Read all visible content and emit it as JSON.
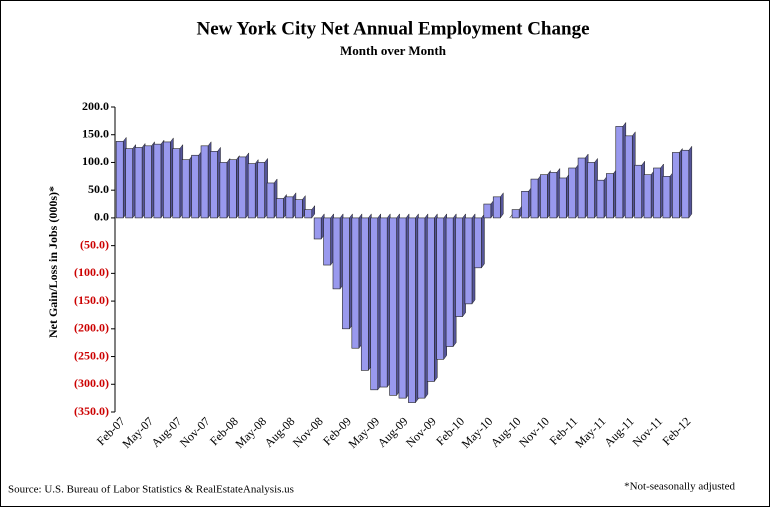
{
  "chart_data": {
    "type": "bar",
    "title": "New York City Net Annual Employment Change",
    "subtitle": "Month over Month",
    "y_label": "Net Gain/Loss in Jobs (000s)*",
    "source": "Source: U.S. Bureau of Labor Statistics & RealEstateAnalysis.us",
    "note": "*Not-seasonally adjusted",
    "color": "#9999ee",
    "negative_label_color": "#cc0000",
    "categories": [
      "Feb-07",
      null,
      null,
      "May-07",
      null,
      null,
      "Aug-07",
      null,
      null,
      "Nov-07",
      null,
      null,
      "Feb-08",
      null,
      null,
      "May-08",
      null,
      null,
      "Aug-08",
      null,
      null,
      "Nov-08",
      null,
      null,
      "Feb-09",
      null,
      null,
      "May-09",
      null,
      null,
      "Aug-09",
      null,
      null,
      "Nov-09",
      null,
      null,
      "Feb-10",
      null,
      null,
      "May-10",
      null,
      null,
      "Aug-10",
      null,
      null,
      "Nov-10",
      null,
      null,
      "Feb-11",
      null,
      null,
      "May-11",
      null,
      null,
      "Aug-11",
      null,
      null,
      "Nov-11",
      null,
      null,
      "Feb-12"
    ],
    "values": [
      138,
      125,
      127,
      130,
      133,
      137,
      125,
      105,
      113,
      130,
      120,
      100,
      105,
      110,
      98,
      100,
      63,
      35,
      38,
      33,
      15,
      -38,
      -85,
      -128,
      -200,
      -235,
      -275,
      -310,
      -305,
      -320,
      -325,
      -333,
      -325,
      -295,
      -255,
      -232,
      -178,
      -155,
      -90,
      25,
      38,
      0,
      15,
      48,
      70,
      78,
      82,
      72,
      90,
      108,
      100,
      68,
      80,
      165,
      148,
      95,
      78,
      90,
      75,
      118,
      122
    ],
    "ylim": [
      -350,
      200
    ],
    "yticks": [
      {
        "value": 200,
        "label": "200.0"
      },
      {
        "value": 150,
        "label": "150.0"
      },
      {
        "value": 100,
        "label": "100.0"
      },
      {
        "value": 50,
        "label": "50.0"
      },
      {
        "value": 0,
        "label": "0.0"
      },
      {
        "value": -50,
        "label": "(50.0)"
      },
      {
        "value": -100,
        "label": "(100.0)"
      },
      {
        "value": -150,
        "label": "(150.0)"
      },
      {
        "value": -200,
        "label": "(200.0)"
      },
      {
        "value": -250,
        "label": "(250.0)"
      },
      {
        "value": -300,
        "label": "(300.0)"
      },
      {
        "value": -350,
        "label": "(350.0)"
      }
    ]
  }
}
